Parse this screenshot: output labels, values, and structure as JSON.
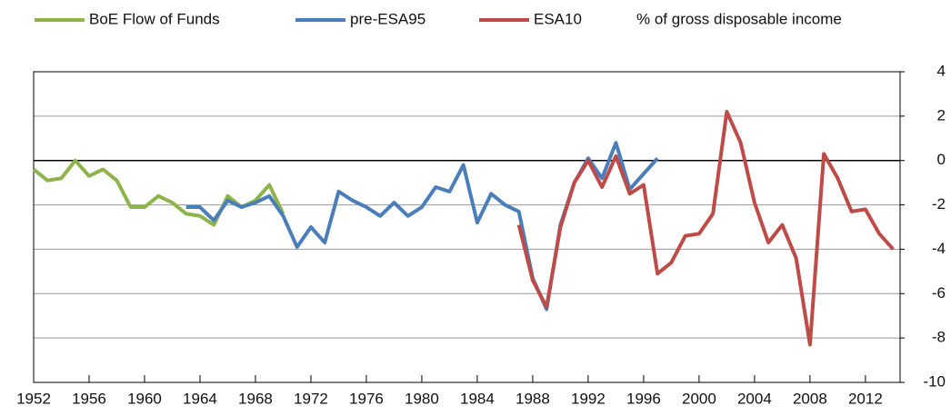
{
  "chart_data": {
    "type": "line",
    "y_label": "% of gross disposable income",
    "series": [
      {
        "name": "BoE Flow of Funds",
        "color": "#8db44a",
        "x": [
          1952,
          1953,
          1954,
          1955,
          1956,
          1957,
          1958,
          1959,
          1960,
          1961,
          1962,
          1963,
          1964,
          1965,
          1966,
          1967,
          1968,
          1969,
          1970
        ],
        "values": [
          -0.4,
          -0.9,
          -0.8,
          0.0,
          -0.7,
          -0.4,
          -0.9,
          -2.1,
          -2.1,
          -1.6,
          -1.9,
          -2.4,
          -2.5,
          -2.9,
          -1.6,
          -2.1,
          -1.8,
          -1.1,
          -2.4
        ]
      },
      {
        "name": "pre-ESA95",
        "color": "#4a7ebb",
        "x": [
          1963,
          1964,
          1965,
          1966,
          1967,
          1968,
          1969,
          1970,
          1971,
          1972,
          1973,
          1974,
          1975,
          1976,
          1977,
          1978,
          1979,
          1980,
          1981,
          1982,
          1983,
          1984,
          1985,
          1986,
          1987,
          1988,
          1989,
          1990,
          1991,
          1992,
          1993,
          1994,
          1995,
          1996,
          1997
        ],
        "values": [
          -2.1,
          -2.1,
          -2.7,
          -1.8,
          -2.1,
          -1.9,
          -1.6,
          -2.5,
          -3.9,
          -3.0,
          -3.7,
          -1.4,
          -1.8,
          -2.1,
          -2.5,
          -1.9,
          -2.5,
          -2.1,
          -1.2,
          -1.4,
          -0.2,
          -2.8,
          -1.5,
          -2.0,
          -2.3,
          -5.3,
          -6.7,
          -2.9,
          -1.0,
          0.1,
          -0.8,
          0.8,
          -1.3,
          -0.6,
          0.1
        ]
      },
      {
        "name": "ESA10",
        "color": "#be4b48",
        "x": [
          1987,
          1988,
          1989,
          1990,
          1991,
          1992,
          1993,
          1994,
          1995,
          1996,
          1997,
          1998,
          1999,
          2000,
          2001,
          2002,
          2003,
          2004,
          2005,
          2006,
          2007,
          2008,
          2009,
          2010,
          2011,
          2012,
          2013,
          2014
        ],
        "values": [
          -2.9,
          -5.4,
          -6.6,
          -3.0,
          -1.0,
          0.0,
          -1.2,
          0.2,
          -1.5,
          -1.1,
          -5.1,
          -4.6,
          -3.4,
          -3.3,
          -2.4,
          2.2,
          0.8,
          -1.9,
          -3.7,
          -2.9,
          -4.4,
          -8.3,
          0.3,
          -0.8,
          -2.3,
          -2.2,
          -3.3,
          -4.0
        ]
      }
    ],
    "xlim": [
      1952,
      2014.5
    ],
    "xticks": [
      1952,
      1956,
      1960,
      1964,
      1968,
      1972,
      1976,
      1980,
      1984,
      1988,
      1992,
      1996,
      2000,
      2004,
      2008,
      2012
    ],
    "ylim": [
      -10,
      4
    ],
    "yticks": [
      -10,
      -8,
      -6,
      -4,
      -2,
      0,
      2,
      4
    ],
    "grid": true
  }
}
